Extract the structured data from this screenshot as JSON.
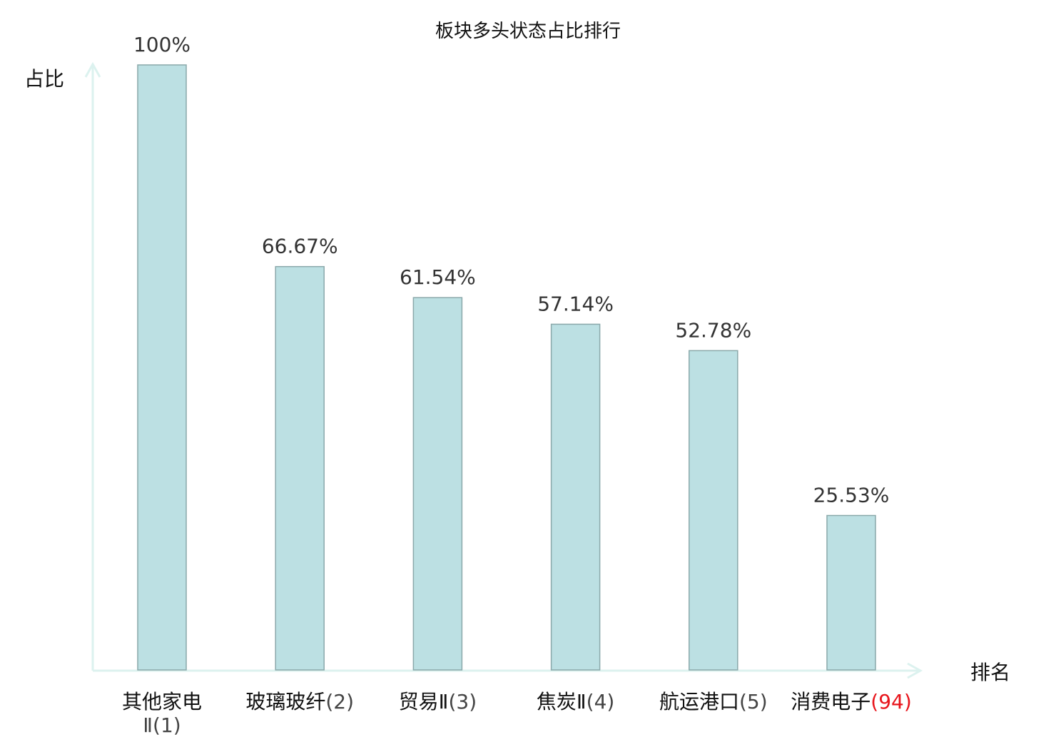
{
  "chart_data": {
    "type": "bar",
    "title": "板块多头状态占比排行",
    "xlabel": "排名",
    "ylabel": "占比",
    "ylim": [
      0,
      100
    ],
    "grid": false,
    "categories": [
      {
        "name": "其他家电",
        "rank": "Ⅱ(1)",
        "highlight": false
      },
      {
        "name": "玻璃玻纤",
        "rank": "(2)",
        "highlight": false
      },
      {
        "name": "贸易Ⅱ",
        "rank": "(3)",
        "highlight": false
      },
      {
        "name": "焦炭Ⅱ",
        "rank": "(4)",
        "highlight": false
      },
      {
        "name": "航运港口",
        "rank": "(5)",
        "highlight": false
      },
      {
        "name": "消费电子",
        "rank": "(94)",
        "highlight": true
      }
    ],
    "values": [
      100,
      66.67,
      61.54,
      57.14,
      52.78,
      25.53
    ],
    "value_labels": [
      "100%",
      "66.67%",
      "61.54%",
      "57.14%",
      "52.78%",
      "25.53%"
    ],
    "colors": {
      "bar_fill": "#bce0e3",
      "bar_stroke": "#8aa8aa",
      "axis": "#dcf2ef",
      "highlight": "#e8141b",
      "text": "#111111"
    }
  }
}
